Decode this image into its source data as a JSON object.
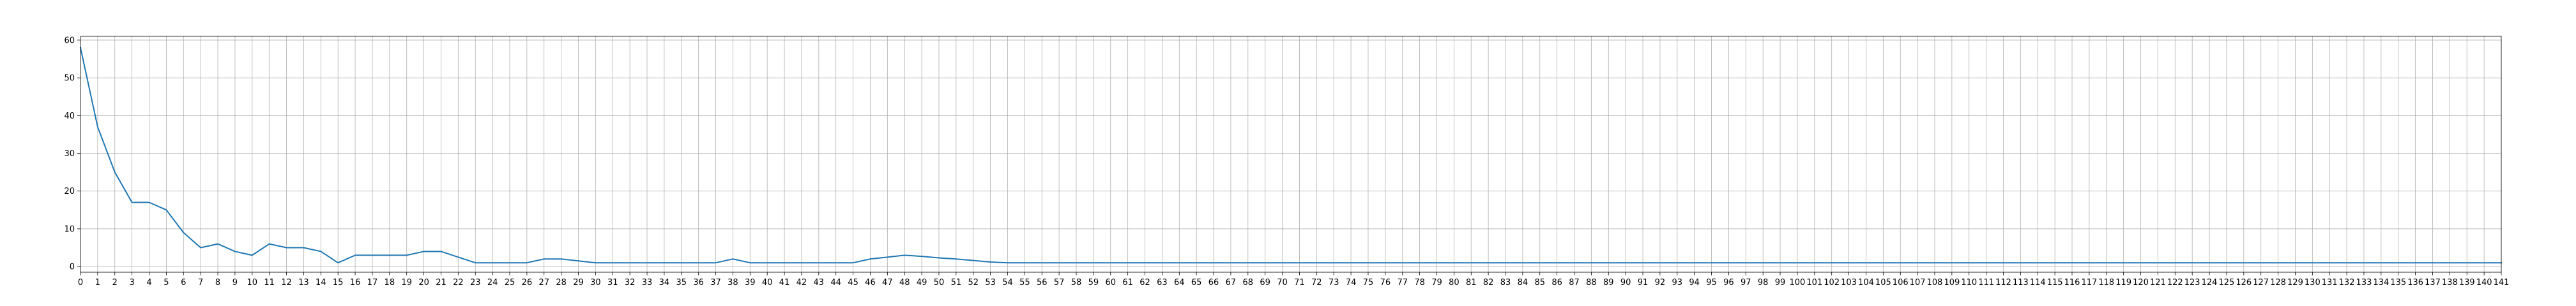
{
  "chart_data": {
    "type": "line",
    "title": "",
    "xlabel": "",
    "ylabel": "",
    "xlim": [
      0,
      141
    ],
    "ylim": [
      -1.5,
      61
    ],
    "grid": true,
    "x_ticks": [
      0,
      1,
      2,
      3,
      4,
      5,
      6,
      7,
      8,
      9,
      10,
      11,
      12,
      13,
      14,
      15,
      16,
      17,
      18,
      19,
      20,
      21,
      22,
      23,
      24,
      25,
      26,
      27,
      28,
      29,
      30,
      31,
      32,
      33,
      34,
      35,
      36,
      37,
      38,
      39,
      40,
      41,
      42,
      43,
      44,
      45,
      46,
      47,
      48,
      49,
      50,
      51,
      52,
      53,
      54,
      55,
      56,
      57,
      58,
      59,
      60,
      61,
      62,
      63,
      64,
      65,
      66,
      67,
      68,
      69,
      70,
      71,
      72,
      73,
      74,
      75,
      76,
      77,
      78,
      79,
      80,
      81,
      82,
      83,
      84,
      85,
      86,
      87,
      88,
      89,
      90,
      91,
      92,
      93,
      94,
      95,
      96,
      97,
      98,
      99,
      100,
      101,
      102,
      103,
      104,
      105,
      106,
      107,
      108,
      109,
      110,
      111,
      112,
      113,
      114,
      115,
      116,
      117,
      118,
      119,
      120,
      121,
      122,
      123,
      124,
      125,
      126,
      127,
      128,
      129,
      130,
      131,
      132,
      133,
      134,
      135,
      136,
      137,
      138,
      139,
      140,
      141
    ],
    "y_ticks": [
      0,
      10,
      20,
      30,
      40,
      50,
      60
    ],
    "series": [
      {
        "color": "#1f77b4",
        "y": [
          58,
          37,
          25,
          17,
          17,
          15,
          9,
          5,
          6,
          4,
          3,
          6,
          5,
          5,
          4,
          1,
          3,
          3,
          3,
          3,
          4,
          4,
          2.5,
          1,
          1,
          1,
          1,
          2,
          2,
          1.5,
          1,
          1,
          1,
          1,
          1,
          1,
          1,
          1,
          2,
          1,
          1,
          1,
          1,
          1,
          1,
          1,
          2,
          2.5,
          3,
          2.7,
          2.3,
          2,
          1.6,
          1.2,
          1,
          1,
          1,
          1,
          1,
          1,
          1,
          1,
          1,
          1,
          1,
          1,
          1,
          1,
          1,
          1,
          1,
          1,
          1,
          1,
          1,
          1,
          1,
          1,
          1,
          1,
          1,
          1,
          1,
          1,
          1,
          1,
          1,
          1,
          1,
          1,
          1,
          1,
          1,
          1,
          1,
          1,
          1,
          1,
          1,
          1,
          1,
          1,
          1,
          1,
          1,
          1,
          1,
          1,
          1,
          1,
          1,
          1,
          1,
          1,
          1,
          1,
          1,
          1,
          1,
          1,
          1,
          1,
          1,
          1,
          1,
          1,
          1,
          1,
          1,
          1,
          1,
          1,
          1,
          1,
          1,
          1,
          1,
          1,
          1,
          1,
          1,
          1
        ]
      }
    ]
  }
}
